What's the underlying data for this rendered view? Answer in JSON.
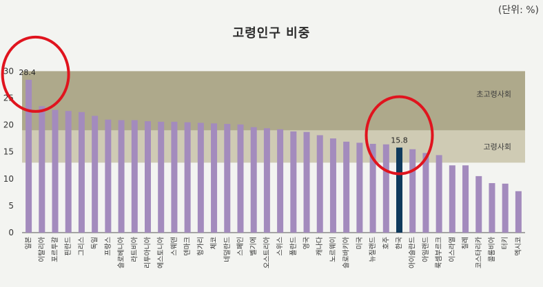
{
  "unit_label": "(단위: %)",
  "chart_data": {
    "type": "bar",
    "title": "고령인구 비중",
    "xlabel": "",
    "ylabel": "",
    "ylim": [
      0,
      30
    ],
    "yticks": [
      0,
      5,
      10,
      15,
      20,
      25,
      30
    ],
    "grid": false,
    "bands": [
      {
        "label": "초고령사회",
        "from": 19,
        "to": 30,
        "color": "#aea98b"
      },
      {
        "label": "고령사회",
        "from": 13,
        "to": 19,
        "color": "#cfcbb4"
      }
    ],
    "categories": [
      "일본",
      "이탈리아",
      "포르투갈",
      "핀란드",
      "그리스",
      "독일",
      "프랑스",
      "슬로베니아",
      "라트비아",
      "리투아니아",
      "에스토니아",
      "스웨덴",
      "덴마크",
      "헝가리",
      "체코",
      "네덜란드",
      "스페인",
      "벨기에",
      "오스트리아",
      "스위스",
      "폴란드",
      "영국",
      "캐나다",
      "노르웨이",
      "슬로바키아",
      "미국",
      "뉴질랜드",
      "호주",
      "한국",
      "아이슬란드",
      "아일랜드",
      "룩셈부르크",
      "이스라엘",
      "칠레",
      "코스타리카",
      "콜롬비아",
      "터키",
      "멕시코"
    ],
    "values": [
      28.4,
      23.5,
      22.8,
      22.6,
      22.4,
      21.7,
      21.0,
      20.9,
      20.9,
      20.7,
      20.6,
      20.6,
      20.5,
      20.4,
      20.3,
      20.2,
      20.1,
      19.6,
      19.4,
      19.2,
      18.8,
      18.7,
      18.1,
      17.5,
      16.9,
      16.7,
      16.5,
      16.4,
      15.8,
      15.5,
      14.8,
      14.4,
      12.5,
      12.5,
      10.5,
      9.2,
      9.1,
      7.7
    ],
    "bar_color": "#a38bbd",
    "highlight_color": "#0f3a5c",
    "data_labels": [
      {
        "category": "일본",
        "text": "28.4"
      },
      {
        "category": "한국",
        "text": "15.8"
      }
    ],
    "highlight": "한국",
    "annotations": [
      {
        "type": "circle",
        "target": "일본",
        "color": "#e0141e"
      },
      {
        "type": "circle",
        "target": "한국",
        "color": "#e0141e"
      }
    ]
  }
}
